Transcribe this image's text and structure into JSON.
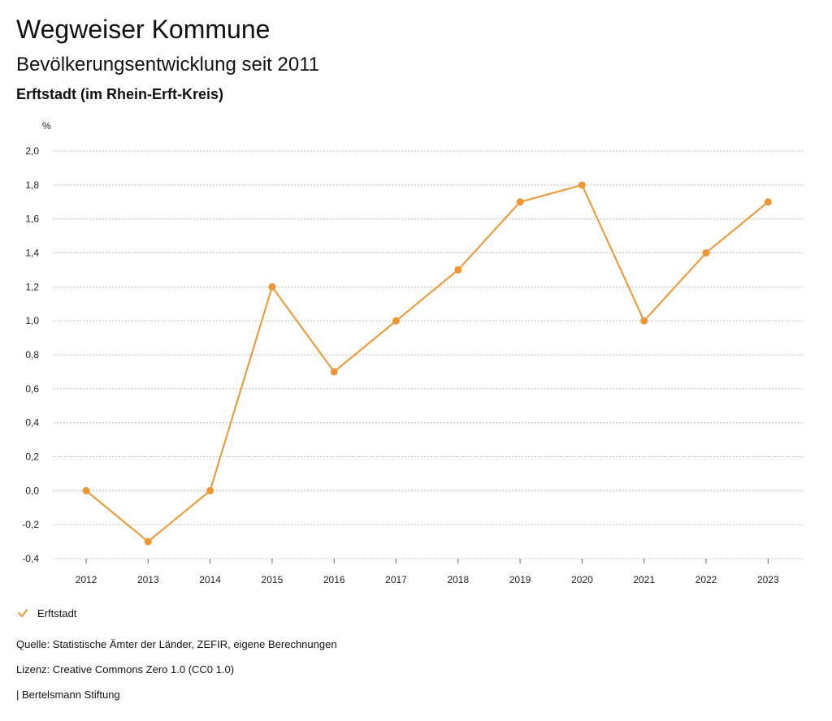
{
  "header": {
    "title": "Wegweiser Kommune",
    "subtitle": "Bevölkerungsentwicklung seit 2011",
    "region": "Erftstadt (im Rhein-Erft-Kreis)"
  },
  "legend": {
    "label": "Erftstadt",
    "icon": "check-icon"
  },
  "footer": {
    "source": "Quelle: Statistische Ämter der Länder, ZEFIR, eigene Berechnungen",
    "license": "Lizenz: Creative Commons Zero 1.0 (CC0 1.0)",
    "publisher": "| Bertelsmann Stiftung"
  },
  "colors": {
    "series": "#ee9632",
    "grid": "#bbbbbb",
    "axis": "#666666"
  },
  "chart_data": {
    "type": "line",
    "unit_label": "%",
    "categories": [
      "2012",
      "2013",
      "2014",
      "2015",
      "2016",
      "2017",
      "2018",
      "2019",
      "2020",
      "2021",
      "2022",
      "2023"
    ],
    "series": [
      {
        "name": "Erftstadt",
        "values": [
          0.0,
          -0.3,
          0.0,
          1.2,
          0.7,
          1.0,
          1.3,
          1.7,
          1.8,
          1.0,
          1.4,
          1.7
        ]
      }
    ],
    "yticks": [
      {
        "value": -0.4,
        "label": "-0,4"
      },
      {
        "value": -0.2,
        "label": "-0,2"
      },
      {
        "value": 0.0,
        "label": "0,0"
      },
      {
        "value": 0.2,
        "label": "0,2"
      },
      {
        "value": 0.4,
        "label": "0,4"
      },
      {
        "value": 0.6,
        "label": "0,6"
      },
      {
        "value": 0.8,
        "label": "0,8"
      },
      {
        "value": 1.0,
        "label": "1,0"
      },
      {
        "value": 1.2,
        "label": "1,2"
      },
      {
        "value": 1.4,
        "label": "1,4"
      },
      {
        "value": 1.6,
        "label": "1,6"
      },
      {
        "value": 1.8,
        "label": "1,8"
      },
      {
        "value": 2.0,
        "label": "2,0"
      }
    ],
    "ylim": [
      -0.4,
      2.0
    ],
    "grid": true,
    "legend_position": "bottom-left"
  }
}
